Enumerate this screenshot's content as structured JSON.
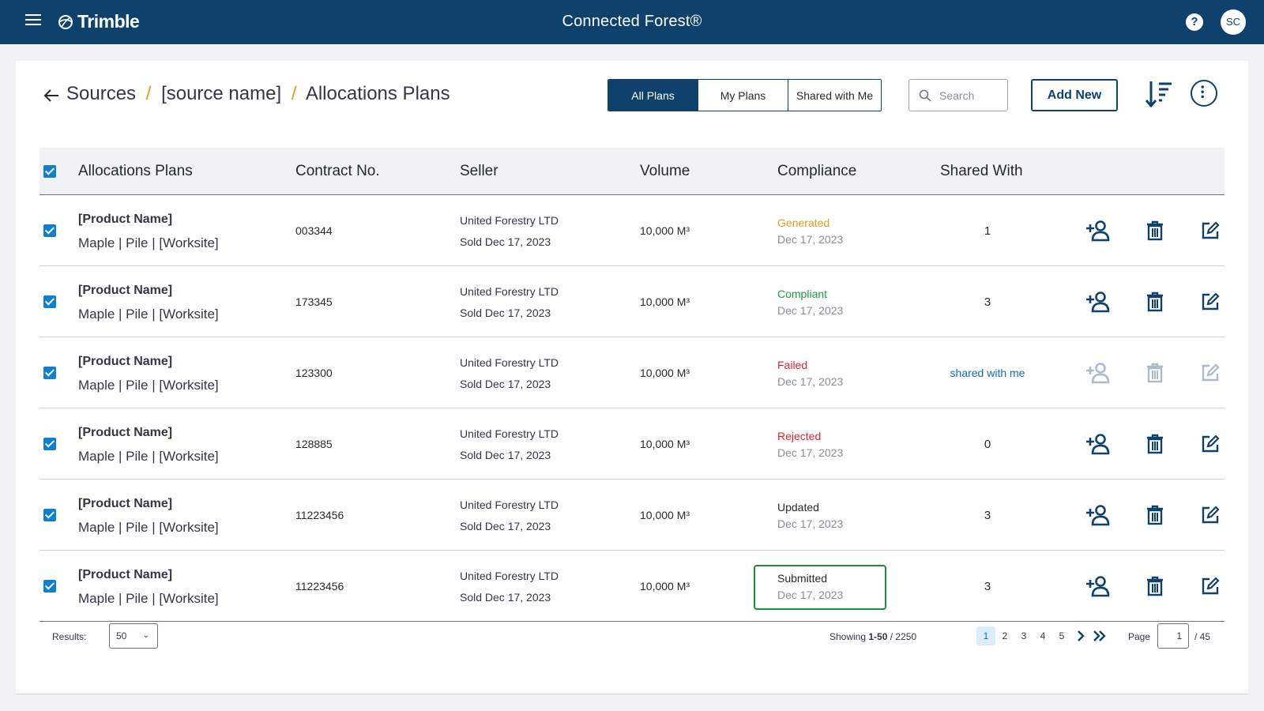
{
  "app": {
    "logo_text": "Trimble",
    "title": "Connected Forest®",
    "help": "?",
    "user_initials": "SC"
  },
  "breadcrumb": {
    "items": [
      "Sources",
      "[source name]",
      "Allocations Plans"
    ],
    "separator": "/"
  },
  "filters": {
    "tabs": [
      {
        "label": "All Plans",
        "active": true
      },
      {
        "label": "My Plans",
        "active": false
      },
      {
        "label": "Shared with Me",
        "active": false
      }
    ]
  },
  "search": {
    "placeholder": "Search",
    "value": ""
  },
  "toolbar": {
    "add_label": "Add New",
    "sort_icon": "sort-icon",
    "more_icon": "more-vertical-icon"
  },
  "table": {
    "columns": [
      "Allocations Plans",
      "Contract No.",
      "Seller",
      "Volume",
      "Compliance",
      "Shared With"
    ],
    "rows": [
      {
        "product": "[Product Name]",
        "meta": "Maple | Pile | [Worksite]",
        "contract": "003344",
        "seller": "United Forestry LTD",
        "sold": "Sold Dec 17, 2023",
        "volume": "10,000 M³",
        "status": "Generated",
        "status_color": "#e49a1b",
        "date": "Dec 17, 2023",
        "shared": "1",
        "shared_link": false,
        "actions_disabled": false,
        "highlight": false
      },
      {
        "product": "[Product Name]",
        "meta": "Maple | Pile | [Worksite]",
        "contract": "173345",
        "seller": "United Forestry LTD",
        "sold": "Sold Dec 17, 2023",
        "volume": "10,000 M³",
        "status": "Compliant",
        "status_color": "#1a9e3c",
        "date": "Dec 17, 2023",
        "shared": "3",
        "shared_link": false,
        "actions_disabled": false,
        "highlight": false
      },
      {
        "product": "[Product Name]",
        "meta": "Maple | Pile | [Worksite]",
        "contract": "123300",
        "seller": "United Forestry LTD",
        "sold": "Sold Dec 17, 2023",
        "volume": "10,000 M³",
        "status": "Failed",
        "status_color": "#d9262e",
        "date": "Dec 17, 2023",
        "shared": "shared with me",
        "shared_link": true,
        "actions_disabled": true,
        "highlight": false
      },
      {
        "product": "[Product Name]",
        "meta": "Maple | Pile | [Worksite]",
        "contract": "128885",
        "seller": "United Forestry LTD",
        "sold": "Sold Dec 17, 2023",
        "volume": "10,000 M³",
        "status": "Rejected",
        "status_color": "#d9262e",
        "date": "Dec 17, 2023",
        "shared": "0",
        "shared_link": false,
        "actions_disabled": false,
        "highlight": false
      },
      {
        "product": "[Product Name]",
        "meta": "Maple | Pile | [Worksite]",
        "contract": "11223456",
        "seller": "United Forestry LTD",
        "sold": "Sold Dec 17, 2023",
        "volume": "10,000 M³",
        "status": "Updated",
        "status_color": "#252a2e",
        "date": "Dec 17, 2023",
        "shared": "3",
        "shared_link": false,
        "actions_disabled": false,
        "highlight": false
      },
      {
        "product": "[Product Name]",
        "meta": "Maple | Pile | [Worksite]",
        "contract": "11223456",
        "seller": "United Forestry LTD",
        "sold": "Sold Dec 17, 2023",
        "volume": "10,000 M³",
        "status": "Submitted",
        "status_color": "#252a2e",
        "date": "Dec 17, 2023",
        "shared": "3",
        "shared_link": false,
        "actions_disabled": false,
        "highlight": true
      }
    ],
    "row_icons": [
      "add-user-icon",
      "trash-icon",
      "edit-icon"
    ]
  },
  "footer": {
    "results_label": "Results:",
    "results_value": "50",
    "showing_prefix": "Showing",
    "showing_range": "1-50",
    "showing_total": "/ 2250",
    "pages": [
      "1",
      "2",
      "3",
      "4",
      "5"
    ],
    "current_page": "1",
    "page_label": "Page",
    "page_total": "/ 45"
  },
  "colors": {
    "brand": "#0e416c",
    "accent": "#0e7fd1",
    "highlight_border": "#1a8c3e"
  }
}
